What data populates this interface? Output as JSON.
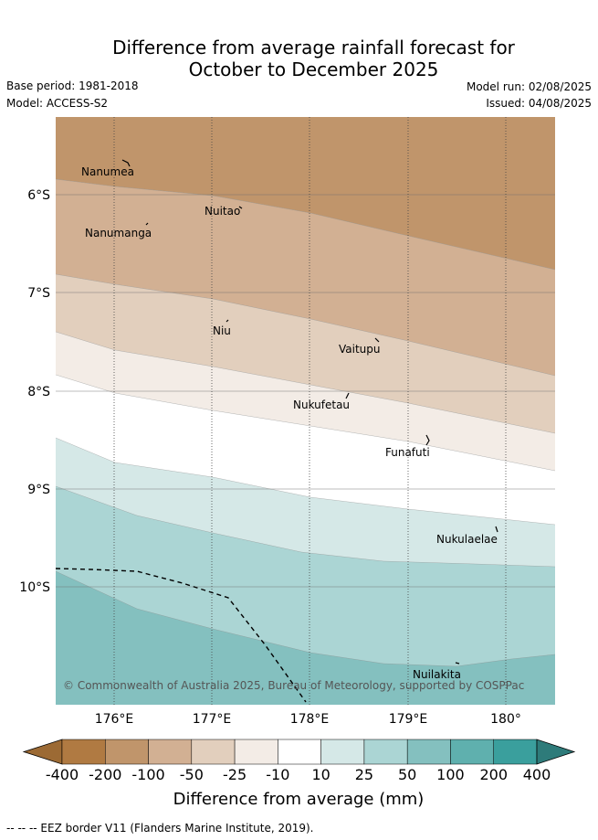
{
  "header": {
    "title_line1": "Difference from average rainfall forecast for",
    "title_line2": "October to December 2025",
    "base_period": "Base period: 1981-2018",
    "model": "Model: ACCESS-S2",
    "model_run": "Model run: 02/08/2025",
    "issued": "Issued: 04/08/2025"
  },
  "map": {
    "lat_labels": [
      "6°S",
      "7°S",
      "8°S",
      "9°S",
      "10°S"
    ],
    "lon_labels": [
      "176°E",
      "177°E",
      "178°E",
      "179°E",
      "180°"
    ],
    "places": [
      "Nanumea",
      "Nuitao",
      "Nanumanga",
      "Niu",
      "Vaitupu",
      "Nukufetau",
      "Funafuti",
      "Nukulaelae",
      "Nuilakita"
    ],
    "credit": "© Commonwealth of Australia 2025, Bureau of Meteorology, supported by COSPPac"
  },
  "colorbar": {
    "ticks": [
      "-400",
      "-200",
      "-100",
      "-50",
      "-25",
      "-10",
      "10",
      "25",
      "50",
      "100",
      "200",
      "400"
    ],
    "colors": [
      "#9c6a34",
      "#b07a42",
      "#c0956b",
      "#d2b093",
      "#e2cfbd",
      "#f3ece6",
      "#ffffff",
      "#d5e8e7",
      "#abd5d4",
      "#84c0bf",
      "#5fb0ae",
      "#3a9f9d",
      "#2e7b7a"
    ],
    "title": "Difference from average (mm)"
  },
  "legend_note": "-- -- -- EEZ border V11 (Flanders Marine Institute, 2019)."
}
